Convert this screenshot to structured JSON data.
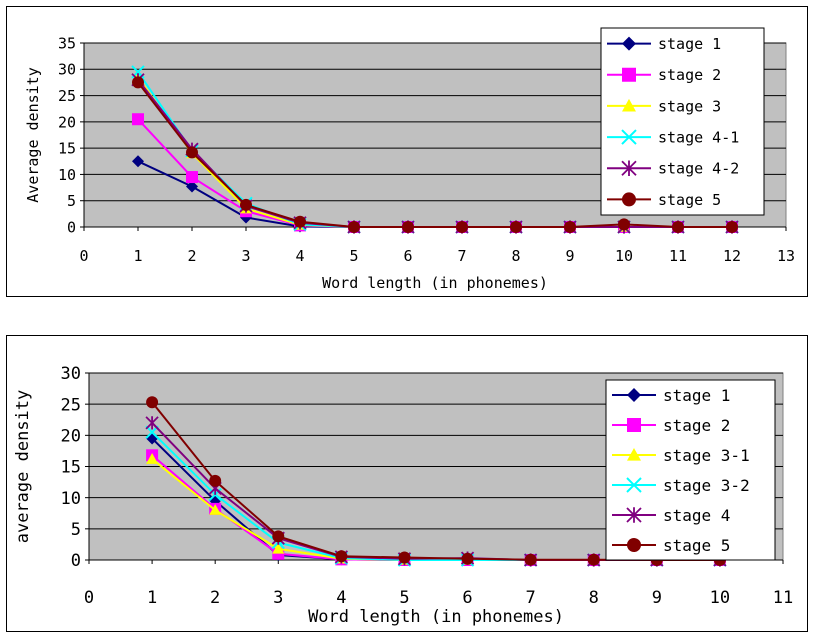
{
  "chart_data": [
    {
      "type": "line",
      "title": "",
      "xlabel": "Word length (in phonemes)",
      "ylabel": "Average density",
      "xlim": [
        0,
        13
      ],
      "ylim": [
        0,
        35
      ],
      "xticks": [
        0,
        1,
        2,
        3,
        4,
        5,
        6,
        7,
        8,
        9,
        10,
        11,
        12,
        13
      ],
      "yticks": [
        0,
        5,
        10,
        15,
        20,
        25,
        30,
        35
      ],
      "grid": "horizontal",
      "legend_position": "top-right",
      "x": [
        1,
        2,
        3,
        4,
        5,
        6,
        7,
        8,
        9,
        10,
        11,
        12
      ],
      "series": [
        {
          "name": "stage 1",
          "color": "#000080",
          "marker": "diamond-icon",
          "values": [
            12.5,
            7.7,
            1.8,
            0.1,
            0,
            0,
            0,
            0,
            0,
            0,
            0,
            0
          ]
        },
        {
          "name": "stage 2",
          "color": "#ff00ff",
          "marker": "square-icon",
          "values": [
            20.5,
            9.5,
            3.0,
            0.3,
            0,
            0,
            0,
            0,
            0,
            0,
            0,
            0
          ]
        },
        {
          "name": "stage 3",
          "color": "#ffff00",
          "marker": "triangle-icon",
          "values": [
            28.5,
            14.0,
            3.5,
            0.4,
            0,
            0,
            0,
            0,
            0,
            0,
            0,
            0
          ]
        },
        {
          "name": "stage 4-1",
          "color": "#00ffff",
          "marker": "x-icon",
          "values": [
            29.5,
            14.5,
            4.5,
            0.5,
            0,
            0,
            0,
            0,
            0,
            0,
            0,
            0
          ]
        },
        {
          "name": "stage 4-2",
          "color": "#800080",
          "marker": "asterisk-icon",
          "values": [
            28.0,
            14.8,
            4.0,
            0.8,
            0,
            0,
            0,
            0,
            0,
            0,
            0,
            0
          ]
        },
        {
          "name": "stage 5",
          "color": "#800000",
          "marker": "circle-icon",
          "values": [
            27.5,
            14.2,
            4.2,
            1.0,
            0,
            0,
            0,
            0,
            0,
            0.5,
            0,
            0
          ]
        }
      ]
    },
    {
      "type": "line",
      "title": "",
      "xlabel": "Word length (in phonemes)",
      "ylabel": "average density",
      "xlim": [
        0,
        11
      ],
      "ylim": [
        0,
        30
      ],
      "xticks": [
        0,
        1,
        2,
        3,
        4,
        5,
        6,
        7,
        8,
        9,
        10,
        11
      ],
      "yticks": [
        0,
        5,
        10,
        15,
        20,
        25,
        30
      ],
      "grid": "horizontal",
      "legend_position": "top-right",
      "x": [
        1,
        2,
        3,
        4,
        5,
        6,
        7,
        8,
        9,
        10
      ],
      "series": [
        {
          "name": "stage 1",
          "color": "#000080",
          "marker": "diamond-icon",
          "values": [
            19.5,
            9.5,
            0.8,
            0.1,
            0,
            0,
            0,
            0,
            0,
            0
          ]
        },
        {
          "name": "stage 2",
          "color": "#ff00ff",
          "marker": "square-icon",
          "values": [
            16.8,
            8.2,
            1.0,
            0.1,
            0,
            0,
            0,
            0,
            0,
            0
          ]
        },
        {
          "name": "stage 3-1",
          "color": "#ffff00",
          "marker": "triangle-icon",
          "values": [
            16.2,
            8.0,
            1.8,
            0.2,
            0,
            0,
            0,
            0,
            0,
            0
          ]
        },
        {
          "name": "stage 3-2",
          "color": "#00ffff",
          "marker": "x-icon",
          "values": [
            20.5,
            10.5,
            2.8,
            0.3,
            0,
            0,
            0,
            0,
            0,
            0
          ]
        },
        {
          "name": "stage 4",
          "color": "#800080",
          "marker": "asterisk-icon",
          "values": [
            22.0,
            11.5,
            3.5,
            0.5,
            0.2,
            0.3,
            0,
            0,
            0,
            0
          ]
        },
        {
          "name": "stage 5",
          "color": "#800000",
          "marker": "circle-icon",
          "values": [
            25.3,
            12.7,
            3.8,
            0.6,
            0.4,
            0.2,
            0.05,
            0.05,
            0,
            0
          ]
        }
      ]
    }
  ]
}
